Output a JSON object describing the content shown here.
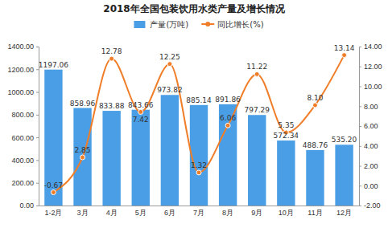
{
  "chart_data": {
    "type": "bar",
    "title": "2018年全国包装饮用水类产量及增长情况",
    "categories": [
      "1-2月",
      "3月",
      "4月",
      "5月",
      "6月",
      "7月",
      "8月",
      "9月",
      "10月",
      "11月",
      "12月"
    ],
    "series": [
      {
        "name": "产量(万吨)",
        "type": "bar",
        "color": "#4a9ee6",
        "values": [
          1197.06,
          858.96,
          833.88,
          843.66,
          973.82,
          885.14,
          891.86,
          797.29,
          572.34,
          488.76,
          535.2
        ],
        "value_labels": [
          "1197.06",
          "858.96",
          "833.88",
          "843.66",
          "973.82",
          "885.14",
          "891.86",
          "797.29",
          "572.34",
          "488.76",
          "535.20"
        ]
      },
      {
        "name": "同比增长(%)",
        "type": "line",
        "axis": "y2",
        "color": "#f07d28",
        "marker": "circle",
        "values": [
          -0.67,
          2.85,
          12.78,
          7.42,
          12.25,
          1.32,
          6.06,
          11.22,
          5.35,
          8.1,
          13.14
        ],
        "value_labels": [
          "-0.67",
          "2.85",
          "12.78",
          "7.42",
          "12.25",
          "1.32",
          "6.06",
          "11.22",
          "5.35",
          "8.10",
          "13.14"
        ]
      }
    ],
    "ylim": [
      0,
      1400
    ],
    "yticks": [
      {
        "value": 0,
        "label": "0.00"
      },
      {
        "value": 200,
        "label": "200.00"
      },
      {
        "value": 400,
        "label": "400.00"
      },
      {
        "value": 600,
        "label": "600.00"
      },
      {
        "value": 800,
        "label": "800.00"
      },
      {
        "value": 1000,
        "label": "1000.00"
      },
      {
        "value": 1200,
        "label": "1200.00"
      },
      {
        "value": 1400,
        "label": "1400.00"
      }
    ],
    "y2lim": [
      -2,
      14
    ],
    "y2ticks": [
      {
        "value": -2,
        "label": "-2.00"
      },
      {
        "value": 0,
        "label": "0.00"
      },
      {
        "value": 2,
        "label": "2.00"
      },
      {
        "value": 4,
        "label": "4.00"
      },
      {
        "value": 6,
        "label": "6.00"
      },
      {
        "value": 8,
        "label": "8.00"
      },
      {
        "value": 10,
        "label": "10.00"
      },
      {
        "value": 12,
        "label": "12.00"
      },
      {
        "value": 14,
        "label": "14.00"
      }
    ],
    "grid": false,
    "legend": "top",
    "data_labels": true
  }
}
